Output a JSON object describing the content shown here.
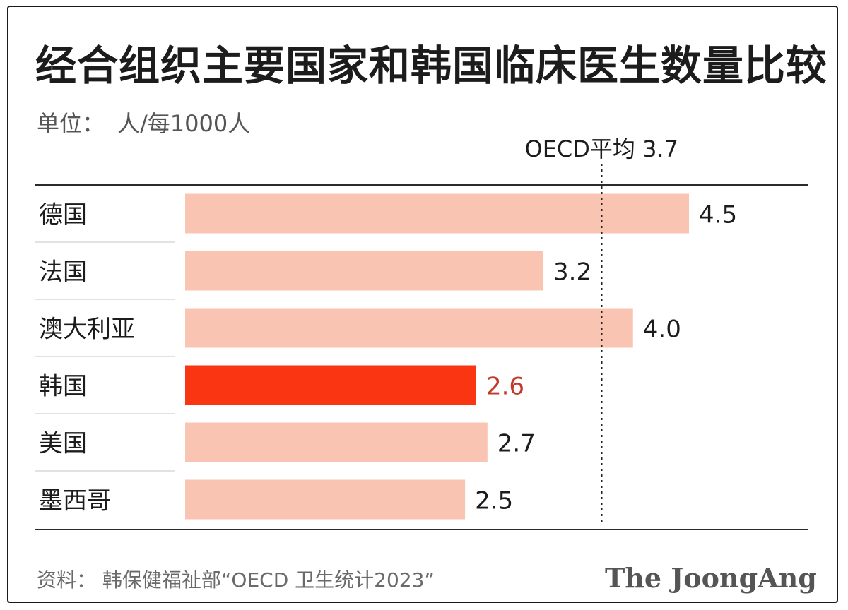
{
  "chart_data": {
    "type": "bar",
    "orientation": "horizontal",
    "title": "经合组织主要国家和韩国临床医生数量比较",
    "unit_label": "单位：",
    "unit_value": "人/每1000人",
    "categories": [
      "德国",
      "法国",
      "澳大利亚",
      "韩国",
      "美国",
      "墨西哥"
    ],
    "values": [
      4.5,
      3.2,
      4.0,
      2.6,
      2.7,
      2.5
    ],
    "value_labels": [
      "4.5",
      "3.2",
      "4.0",
      "2.6",
      "2.7",
      "2.5"
    ],
    "highlight_category": "韩国",
    "reference_line": {
      "label": "OECD平均 3.7",
      "value": 3.7
    },
    "xlim": [
      0,
      4.5
    ],
    "colors": {
      "bar": "#fac4b3",
      "highlight_bar": "#fa3511",
      "highlight_label": "#c0392b",
      "label": "#1c1c1c",
      "rule": "#2b2b2b",
      "separator": "#d8d8d8"
    }
  },
  "footer": {
    "source": "资料：  韩保健福祉部“OECD 卫生统计2023”",
    "brand": "The JoongAng"
  }
}
